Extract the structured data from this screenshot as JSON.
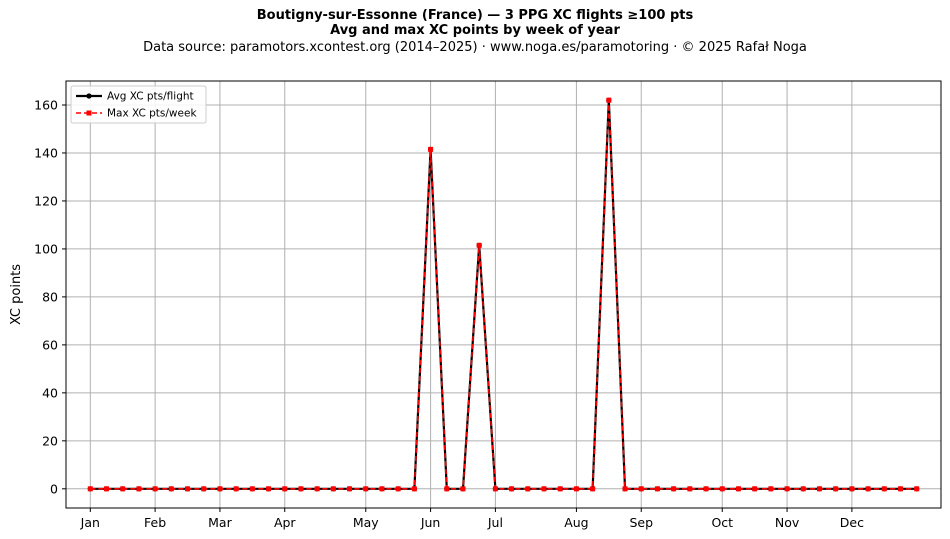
{
  "title": {
    "line1": "Boutigny-sur-Essonne (France)  —  3 PPG XC flights ≥100 pts",
    "line2": "Avg and max XC points by week of year",
    "line3": "Data source: paramotors.xcontest.org (2014–2025)  ·  www.noga.es/paramotoring  ·  © 2025 Rafał Noga"
  },
  "chart_data": {
    "type": "line",
    "title": "Boutigny-sur-Essonne (France)  —  3 PPG XC flights ≥100 pts",
    "subtitle": "Avg and max XC points by week of year",
    "xlabel": "",
    "ylabel": "XC points",
    "x": [
      1,
      2,
      3,
      4,
      5,
      6,
      7,
      8,
      9,
      10,
      11,
      12,
      13,
      14,
      15,
      16,
      17,
      18,
      19,
      20,
      21,
      22,
      23,
      24,
      25,
      26,
      27,
      28,
      29,
      30,
      31,
      32,
      33,
      34,
      35,
      36,
      37,
      38,
      39,
      40,
      41,
      42,
      43,
      44,
      45,
      46,
      47,
      48,
      49,
      50,
      51,
      52
    ],
    "xticks": [
      1,
      5,
      9,
      13,
      18,
      22,
      26,
      31,
      35,
      40,
      44,
      48
    ],
    "xtick_labels": [
      "Jan",
      "Feb",
      "Mar",
      "Apr",
      "May",
      "Jun",
      "Jul",
      "Aug",
      "Sep",
      "Oct",
      "Nov",
      "Dec"
    ],
    "xlim": [
      -0.5,
      53.5
    ],
    "ylim": [
      -8,
      170
    ],
    "yticks": [
      0,
      20,
      40,
      60,
      80,
      100,
      120,
      140,
      160
    ],
    "grid": true,
    "legend_position": "top-left",
    "series": [
      {
        "name": "Avg XC pts/flight",
        "color": "#000000",
        "style": "solid",
        "marker": "circle",
        "values": [
          0,
          0,
          0,
          0,
          0,
          0,
          0,
          0,
          0,
          0,
          0,
          0,
          0,
          0,
          0,
          0,
          0,
          0,
          0,
          0,
          0,
          141.5,
          0,
          0,
          101.5,
          0,
          0,
          0,
          0,
          0,
          0,
          0,
          162,
          0,
          0,
          0,
          0,
          0,
          0,
          0,
          0,
          0,
          0,
          0,
          0,
          0,
          0,
          0,
          0,
          0,
          0,
          0
        ]
      },
      {
        "name": "Max XC pts/week",
        "color": "#ff0000",
        "style": "dashed",
        "marker": "square",
        "values": [
          0,
          0,
          0,
          0,
          0,
          0,
          0,
          0,
          0,
          0,
          0,
          0,
          0,
          0,
          0,
          0,
          0,
          0,
          0,
          0,
          0,
          141.5,
          0,
          0,
          101.5,
          0,
          0,
          0,
          0,
          0,
          0,
          0,
          162,
          0,
          0,
          0,
          0,
          0,
          0,
          0,
          0,
          0,
          0,
          0,
          0,
          0,
          0,
          0,
          0,
          0,
          0,
          0
        ]
      }
    ]
  }
}
